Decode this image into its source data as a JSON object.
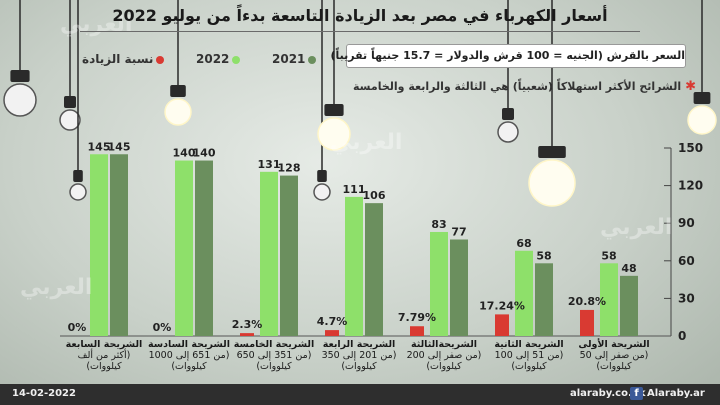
{
  "title": "أسعار الكهرباء في مصر بعد الزيادة التاسعة بدءاً من يوليو 2022",
  "note": "السعر بالقرش (الجنيه = 100 قرش والدولار = 15.7 جنيهاً تقريباً)",
  "note2": "الشرائح الأكثر استهلاكاً (شعبياً) هي الثالثة والرابعة والخامسة",
  "watermark": "العربي",
  "footer": {
    "date": "14-02-2022",
    "site": "alaraby.co.uk",
    "social": "Alaraby.ar",
    "fb_glyph": "f"
  },
  "colors": {
    "series_2022": "#8ee06a",
    "series_2021": "#6b8f5e",
    "increase": "#d93a32",
    "background": "#d6dcd6"
  },
  "chart_data": {
    "type": "bar",
    "ylim": [
      0,
      150
    ],
    "yticks": [
      0,
      30,
      60,
      90,
      120,
      150
    ],
    "ytick_labels": [
      "0",
      "30",
      "60",
      "90",
      "120",
      "150"
    ],
    "grid": false,
    "legend_position": "top",
    "categories": [
      {
        "name": "الشريحة السابعة",
        "range": "(أكثر من ألف كيلووات)"
      },
      {
        "name": "الشريحة السادسة",
        "range": "(من 651 إلى 1000 كيلووات)"
      },
      {
        "name": "الشريحة الخامسة",
        "range": "(من 351 إلى 650 كيلووات)"
      },
      {
        "name": "الشريحة الرابعة",
        "range": "(من 201 إلى 350 كيلووات)"
      },
      {
        "name": "الشريحةالثالثة",
        "range": "(من صفر إلى 200 كيلووات)"
      },
      {
        "name": "الشريحة الثانية",
        "range": "(من 51 إلى 100 كيلووات)"
      },
      {
        "name": "الشريحة الأولى",
        "range": "(من صفر إلى 50 كيلووات)"
      }
    ],
    "series": [
      {
        "name": "2022",
        "values": [
          145,
          140,
          131,
          111,
          83,
          68,
          58
        ]
      },
      {
        "name": "2021",
        "values": [
          145,
          140,
          128,
          106,
          77,
          58,
          48
        ]
      },
      {
        "name": "نسبة الزيادة",
        "values": [
          0,
          0,
          2.3,
          4.7,
          7.79,
          17.24,
          20.8
        ]
      }
    ],
    "increase_labels": [
      "0%",
      "0%",
      "2.3%",
      "4.7%",
      "7.79%",
      "17.24%",
      "20.8%"
    ]
  }
}
